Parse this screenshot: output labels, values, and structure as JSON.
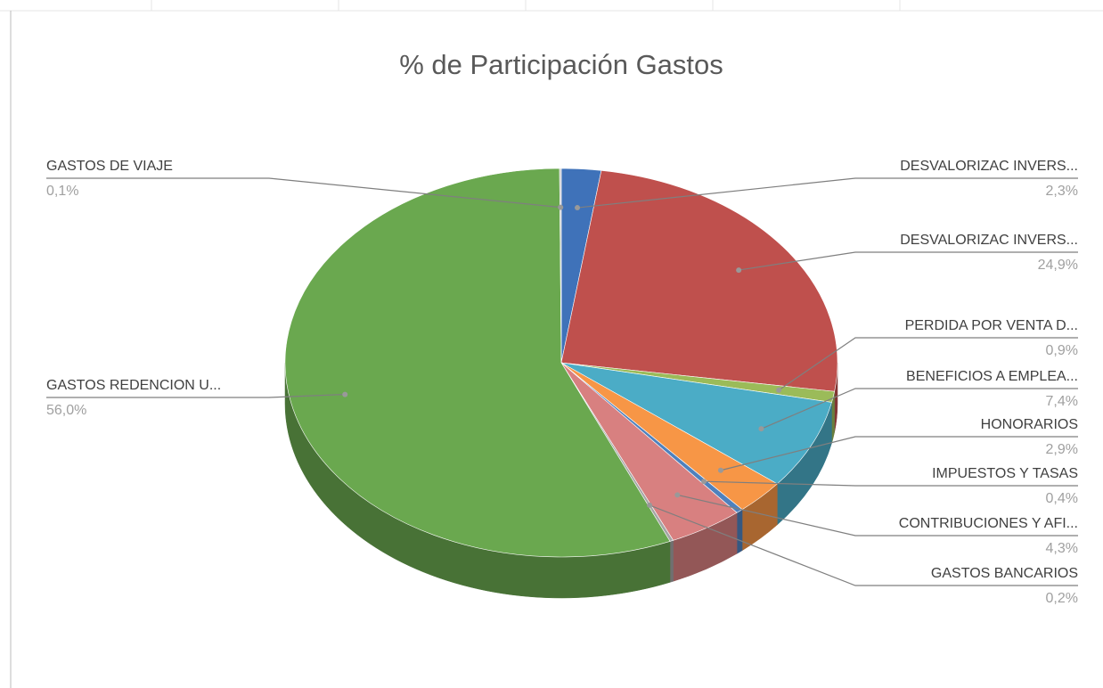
{
  "chart_data": {
    "type": "pie",
    "title": "%  de Participación Gastos",
    "categories": [
      "DESVALORIZAC INVERS...",
      "DESVALORIZAC INVERS...",
      "PERDIDA POR VENTA D...",
      "BENEFICIOS A EMPLEA...",
      "HONORARIOS",
      "IMPUESTOS Y TASAS",
      "CONTRIBUCIONES Y AFI...",
      "GASTOS BANCARIOS",
      "GASTOS REDENCION U...",
      "GASTOS DE VIAJE"
    ],
    "values": [
      2.3,
      24.9,
      0.9,
      7.4,
      2.9,
      0.4,
      4.3,
      0.2,
      56.0,
      0.1
    ],
    "value_labels": [
      "2,3%",
      "24,9%",
      "0,9%",
      "7,4%",
      "2,9%",
      "0,4%",
      "4,3%",
      "0,2%",
      "56,0%",
      "0,1%"
    ],
    "colors": [
      "#3f72b9",
      "#bf504d",
      "#9bbb59",
      "#4bacc6",
      "#f79646",
      "#4f81bd",
      "#d88080",
      "#a5a5a5",
      "#6aa84f",
      "#c8c8c8"
    ]
  }
}
